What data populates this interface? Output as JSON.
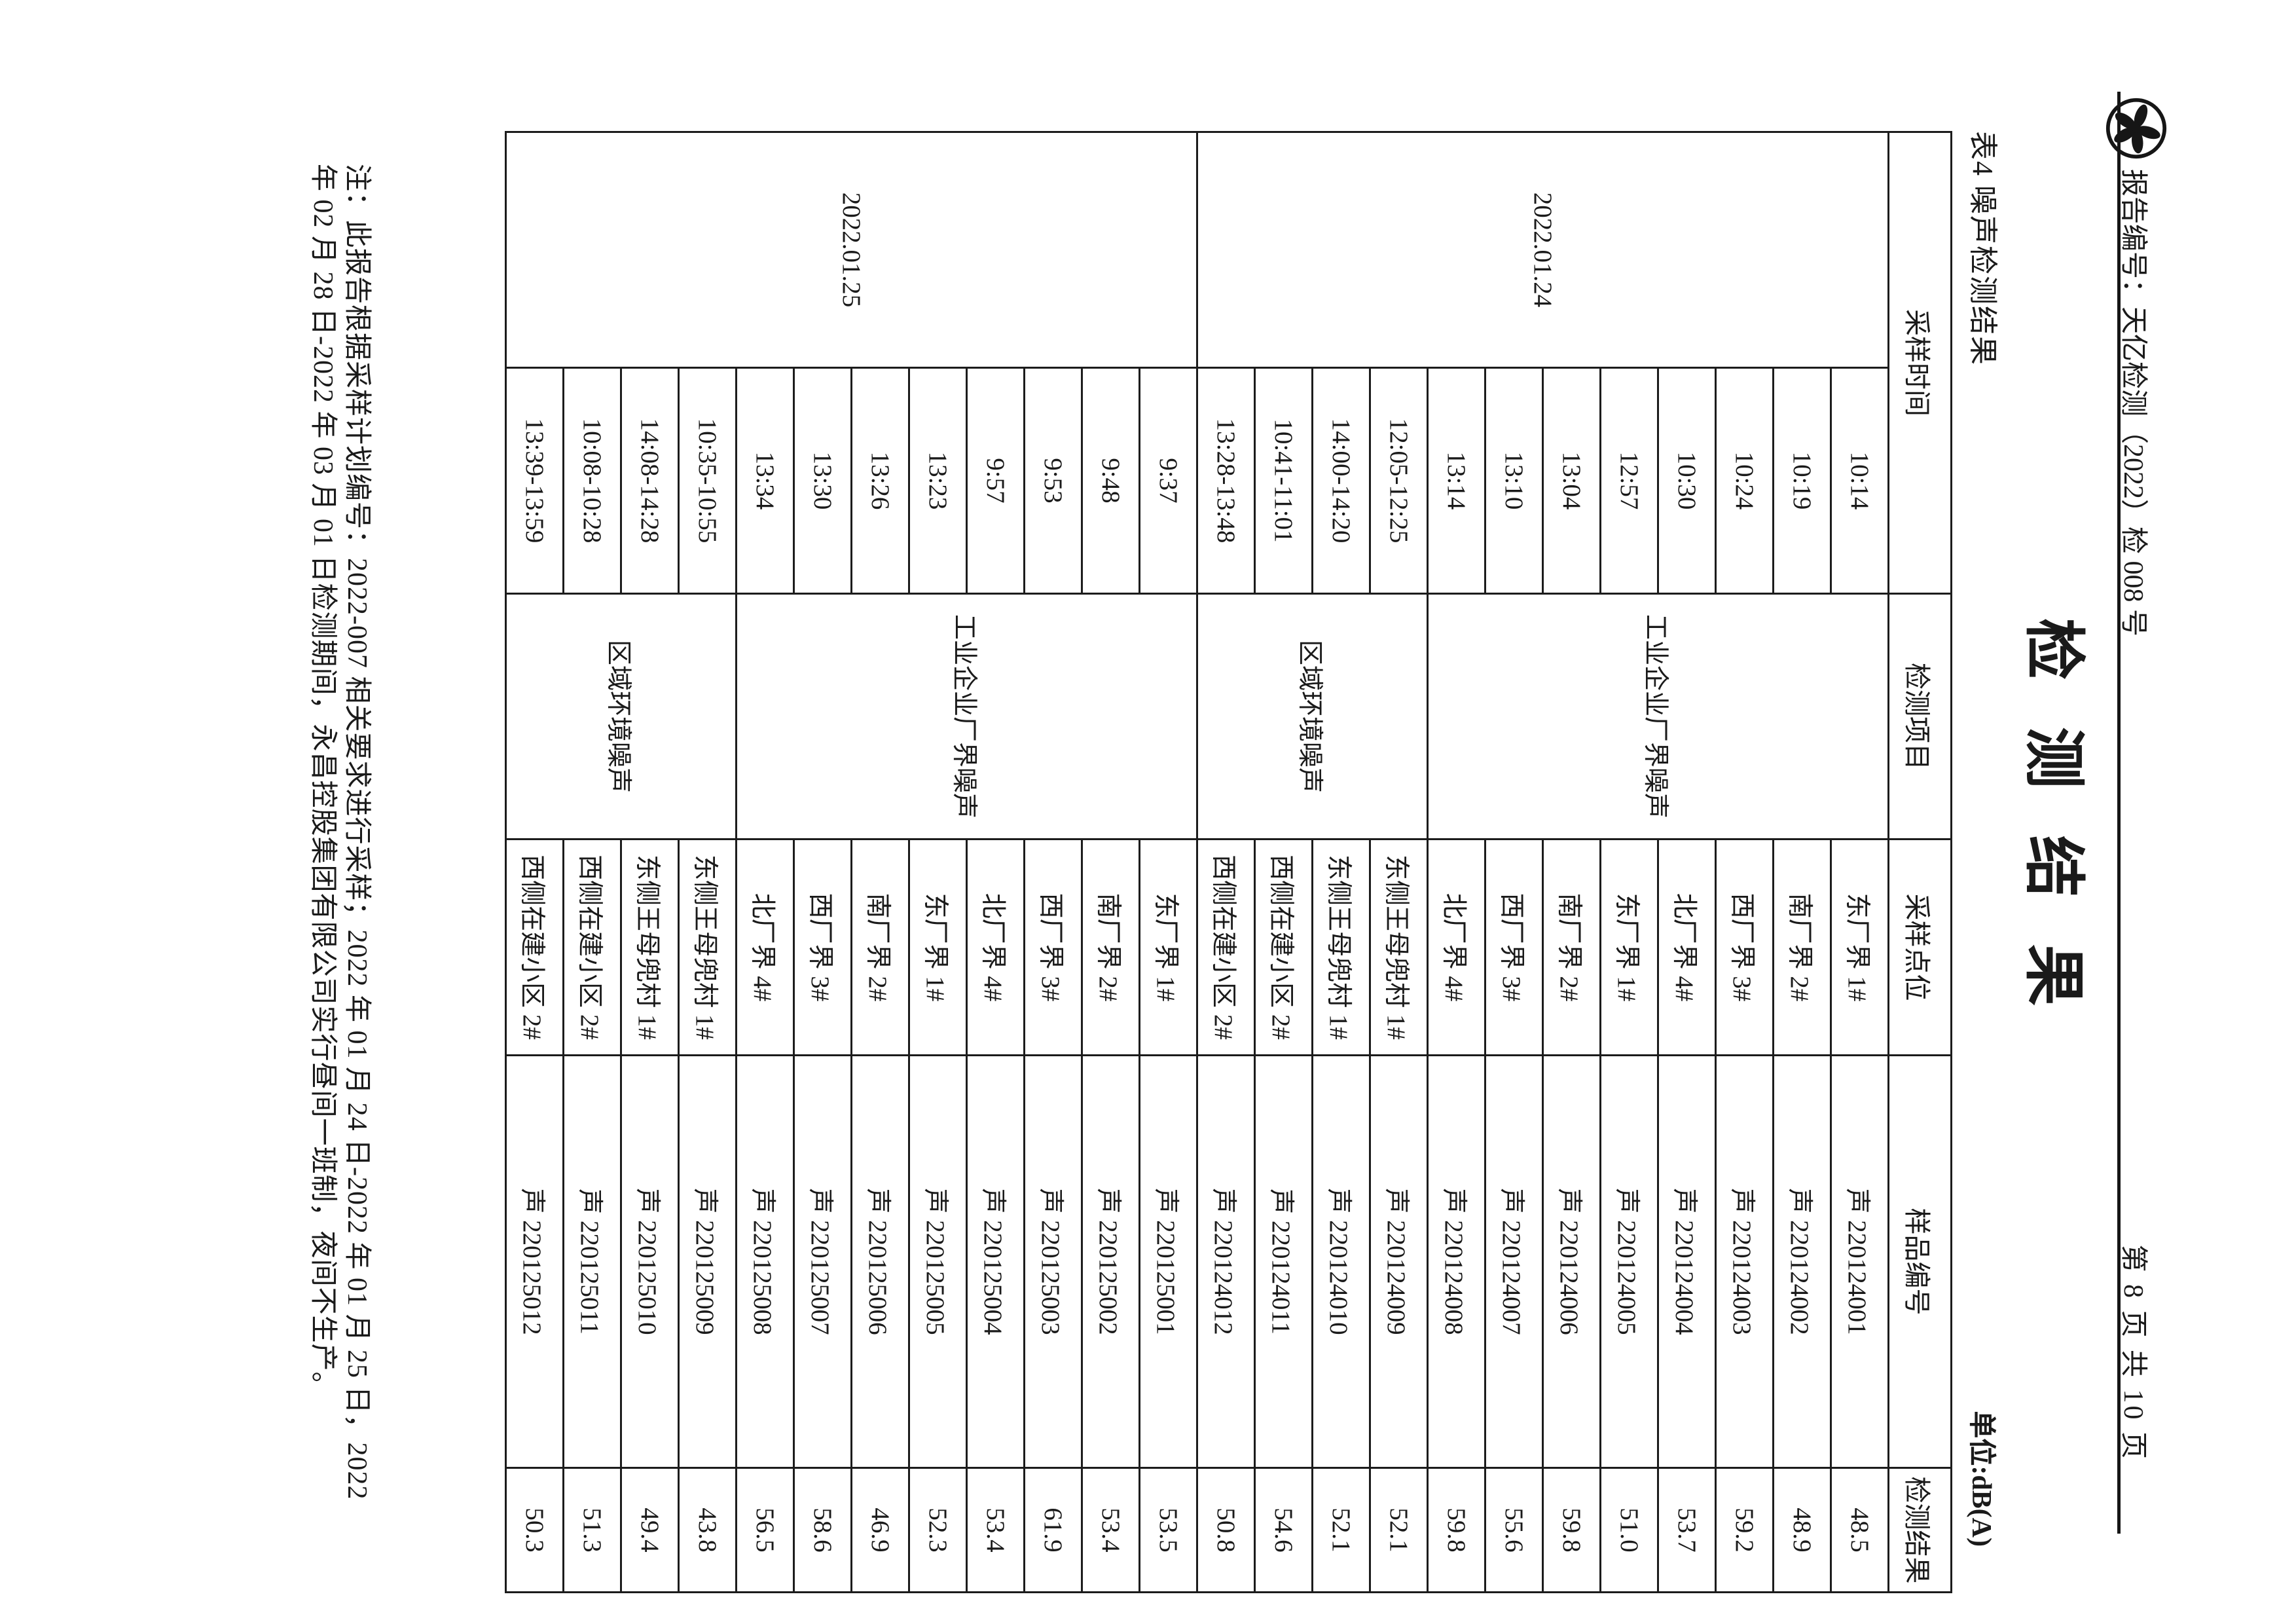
{
  "header": {
    "report_no": "报告编号：天亿检测（2022）检 008 号",
    "page_info": "第 8 页 共 10 页"
  },
  "title": "检测结果",
  "table_caption": "表4 噪声检测结果",
  "unit_label": "单位:dB(A)",
  "table": {
    "headers": {
      "time": "采样时间",
      "item": "检测项目",
      "point": "采样点位",
      "sample_id": "样品编号",
      "result": "检测结果"
    },
    "date_groups": [
      {
        "date": "2022.01.24",
        "rows": 12
      },
      {
        "date": "2022.01.25",
        "rows": 12
      }
    ],
    "item_groups": [
      {
        "item": "工业企业厂界噪声",
        "rows": 8
      },
      {
        "item": "区域环境噪声",
        "rows": 4
      },
      {
        "item": "工业企业厂界噪声",
        "rows": 8
      },
      {
        "item": "区域环境噪声",
        "rows": 4
      }
    ],
    "rows": [
      {
        "time": "10:14",
        "point": "东厂界 1#",
        "sample_id": "声 220124001",
        "result": "48.5"
      },
      {
        "time": "10:19",
        "point": "南厂界 2#",
        "sample_id": "声 220124002",
        "result": "48.9"
      },
      {
        "time": "10:24",
        "point": "西厂界 3#",
        "sample_id": "声 220124003",
        "result": "59.2"
      },
      {
        "time": "10:30",
        "point": "北厂界 4#",
        "sample_id": "声 220124004",
        "result": "53.7"
      },
      {
        "time": "12:57",
        "point": "东厂界 1#",
        "sample_id": "声 220124005",
        "result": "51.0"
      },
      {
        "time": "13:04",
        "point": "南厂界 2#",
        "sample_id": "声 220124006",
        "result": "59.8"
      },
      {
        "time": "13:10",
        "point": "西厂界 3#",
        "sample_id": "声 220124007",
        "result": "55.6"
      },
      {
        "time": "13:14",
        "point": "北厂界 4#",
        "sample_id": "声 220124008",
        "result": "59.8"
      },
      {
        "time": "12:05-12:25",
        "point": "东侧王母兜村 1#",
        "sample_id": "声 220124009",
        "result": "52.1"
      },
      {
        "time": "14:00-14:20",
        "point": "东侧王母兜村 1#",
        "sample_id": "声 220124010",
        "result": "52.1"
      },
      {
        "time": "10:41-11:01",
        "point": "西侧在建小区 2#",
        "sample_id": "声 220124011",
        "result": "54.6"
      },
      {
        "time": "13:28-13:48",
        "point": "西侧在建小区 2#",
        "sample_id": "声 220124012",
        "result": "50.8"
      },
      {
        "time": "9:37",
        "point": "东厂界 1#",
        "sample_id": "声 220125001",
        "result": "53.5"
      },
      {
        "time": "9:48",
        "point": "南厂界 2#",
        "sample_id": "声 220125002",
        "result": "53.4"
      },
      {
        "time": "9:53",
        "point": "西厂界 3#",
        "sample_id": "声 220125003",
        "result": "61.9"
      },
      {
        "time": "9:57",
        "point": "北厂界 4#",
        "sample_id": "声 220125004",
        "result": "53.4"
      },
      {
        "time": "13:23",
        "point": "东厂界 1#",
        "sample_id": "声 220125005",
        "result": "52.3"
      },
      {
        "time": "13:26",
        "point": "南厂界 2#",
        "sample_id": "声 220125006",
        "result": "46.9"
      },
      {
        "time": "13:30",
        "point": "西厂界 3#",
        "sample_id": "声 220125007",
        "result": "58.6"
      },
      {
        "time": "13:34",
        "point": "北厂界 4#",
        "sample_id": "声 220125008",
        "result": "56.5"
      },
      {
        "time": "10:35-10:55",
        "point": "东侧王母兜村 1#",
        "sample_id": "声 220125009",
        "result": "43.8"
      },
      {
        "time": "14:08-14:28",
        "point": "东侧王母兜村 1#",
        "sample_id": "声 220125010",
        "result": "49.4"
      },
      {
        "time": "10:08-10:28",
        "point": "西侧在建小区 2#",
        "sample_id": "声 220125011",
        "result": "51.3"
      },
      {
        "time": "13:39-13:59",
        "point": "西侧在建小区 2#",
        "sample_id": "声 220125012",
        "result": "50.3"
      }
    ]
  },
  "note_lines": [
    "注：此报告根据采样计划编号：2022-007 相关要求进行采样；2022 年 01 月 24 日-2022 年 01 月 25 日，2022",
    "年 02 月 28 日-2022 年 03 月 01 日检测期间，永昌控股集团有限公司实行昼间一班制，夜间不生产。"
  ]
}
